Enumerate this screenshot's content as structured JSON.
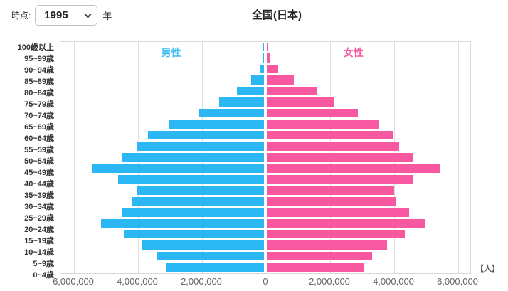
{
  "controls": {
    "time_label": "時点:",
    "year_value": "1995",
    "year_suffix": "年"
  },
  "title": "全国(日本)",
  "unit_label": "【人】",
  "chart_data": {
    "type": "bar",
    "subtype": "population-pyramid",
    "title": "全国(日本)",
    "year": "1995",
    "unit": "人",
    "legend_position": "inside-top",
    "grid": true,
    "axis_max_each_side": 6000000,
    "gridline_values": [
      2000000,
      4000000,
      6000000
    ],
    "x_tick_labels": [
      "6,000,000",
      "4,000,000",
      "2,000,000",
      "0",
      "2,000,000",
      "4,000,000",
      "6,000,000"
    ],
    "categories": [
      "100歳以上",
      "95~99歳",
      "90~94歳",
      "85~89歳",
      "80~84歳",
      "75~79歳",
      "70~74歳",
      "65~69歳",
      "60~64歳",
      "55~59歳",
      "50~54歳",
      "45~49歳",
      "40~44歳",
      "35~39歳",
      "30~34歳",
      "25~29歳",
      "20~24歳",
      "15~19歳",
      "10~14歳",
      "5~9歳",
      "0~4歳"
    ],
    "series": [
      {
        "name": "男性",
        "side": "left",
        "color": "#2bb7f3",
        "values": [
          2000,
          20000,
          110000,
          390000,
          850000,
          1390000,
          2050000,
          2950000,
          3620000,
          3950000,
          4450000,
          5360000,
          4550000,
          3950000,
          4110000,
          4440000,
          5080000,
          4380000,
          3790000,
          3360000,
          3070000
        ]
      },
      {
        "name": "女性",
        "side": "right",
        "color": "#f7589f",
        "values": [
          5000,
          80000,
          360000,
          840000,
          1560000,
          2110000,
          2850000,
          3490000,
          3950000,
          4130000,
          4560000,
          5390000,
          4560000,
          3970000,
          4030000,
          4440000,
          4960000,
          4300000,
          3750000,
          3280000,
          3030000
        ]
      }
    ]
  }
}
